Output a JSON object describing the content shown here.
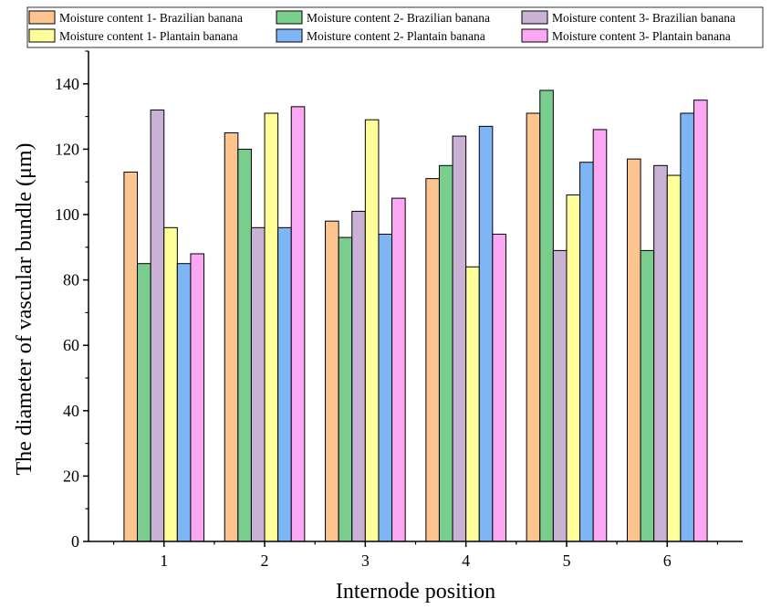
{
  "chart_data": {
    "type": "bar",
    "title": "",
    "xlabel": "Internode position",
    "ylabel": "The diameter of vascular bundle (μm)",
    "ylim": [
      0,
      150
    ],
    "yticks": [
      0,
      20,
      40,
      60,
      80,
      100,
      120,
      140
    ],
    "categories": [
      "1",
      "2",
      "3",
      "4",
      "5",
      "6"
    ],
    "legend_position": "top",
    "series": [
      {
        "name": "Moisture content 1- Brazilian banana",
        "color": "#FDC490",
        "values": [
          113,
          125,
          98,
          111,
          131,
          117
        ]
      },
      {
        "name": "Moisture content 2- Brazilian banana",
        "color": "#79CE8E",
        "values": [
          85,
          120,
          93,
          115,
          138,
          89
        ]
      },
      {
        "name": "Moisture content 3- Brazilian banana",
        "color": "#C9B2D6",
        "values": [
          132,
          96,
          101,
          124,
          89,
          115
        ]
      },
      {
        "name": "Moisture content 1- Plantain banana",
        "color": "#FFFF99",
        "values": [
          96,
          131,
          129,
          84,
          106,
          112
        ]
      },
      {
        "name": "Moisture content 2- Plantain banana",
        "color": "#7EB6F5",
        "values": [
          85,
          96,
          94,
          127,
          116,
          131
        ]
      },
      {
        "name": "Moisture content 3- Plantain banana",
        "color": "#FBA7F4",
        "values": [
          88,
          133,
          105,
          94,
          126,
          135
        ]
      }
    ]
  }
}
